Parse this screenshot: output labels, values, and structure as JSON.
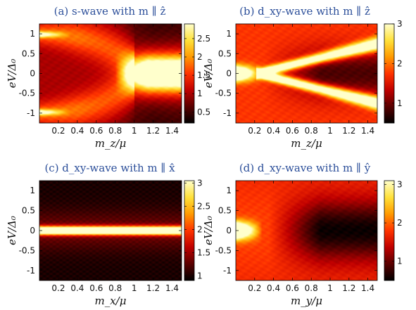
{
  "colormap": [
    "#000000",
    "#5a0000",
    "#c00000",
    "#ff3300",
    "#ff9a00",
    "#ffe13a",
    "#ffffcc"
  ],
  "chart_data": [
    {
      "id": "a",
      "type": "heatmap",
      "title": "(a) s-wave with m ∥ ẑ",
      "xlabel": "m_z/μ",
      "ylabel": "eV/Δ₀",
      "xlim": [
        0,
        1.5
      ],
      "ylim": [
        -1.25,
        1.25
      ],
      "xticks": [
        "0.2",
        "0.4",
        "0.6",
        "0.8",
        "1",
        "1.2",
        "1.4"
      ],
      "yticks": [
        "1",
        "0.5",
        "0",
        "-0.5",
        "-1"
      ],
      "colorbar": {
        "min": 0.2,
        "max": 2.9,
        "ticks": [
          "2.5",
          "2",
          "1.5",
          "1",
          "0.5"
        ]
      }
    },
    {
      "id": "b",
      "type": "heatmap",
      "title": "(b) d_xy-wave with m ∥ ẑ",
      "xlabel": "m_z/μ",
      "ylabel": "eV/Δ₀",
      "xlim": [
        0,
        1.5
      ],
      "ylim": [
        -1.25,
        1.25
      ],
      "xticks": [
        "0.2",
        "0.4",
        "0.6",
        "0.8",
        "1",
        "1.2",
        "1.4"
      ],
      "yticks": [
        "1",
        "0.5",
        "0",
        "-0.5",
        "-1"
      ],
      "colorbar": {
        "min": 0.5,
        "max": 3.0,
        "ticks": [
          "3",
          "2",
          "1"
        ]
      }
    },
    {
      "id": "c",
      "type": "heatmap",
      "title": "(c) d_xy-wave with m ∥ x̂",
      "xlabel": "m_x/μ",
      "ylabel": "eV/Δ₀",
      "xlim": [
        0,
        1.5
      ],
      "ylim": [
        -1.25,
        1.25
      ],
      "xticks": [
        "0.2",
        "0.4",
        "0.6",
        "0.8",
        "1",
        "1.2",
        "1.4"
      ],
      "yticks": [
        "1",
        "0.5",
        "0",
        "-0.5",
        "-1"
      ],
      "colorbar": {
        "min": 0.9,
        "max": 3.05,
        "ticks": [
          "3",
          "2.5",
          "2",
          "1.5",
          "1"
        ]
      }
    },
    {
      "id": "d",
      "type": "heatmap",
      "title": "(d) d_xy-wave with m ∥ ŷ",
      "xlabel": "m_y/μ",
      "ylabel": "eV/Δ₀",
      "xlim": [
        0,
        1.5
      ],
      "ylim": [
        -1.25,
        1.25
      ],
      "xticks": [
        "0.2",
        "0.4",
        "0.6",
        "0.8",
        "1",
        "1.2",
        "1.4"
      ],
      "yticks": [
        "1",
        "0.5",
        "0",
        "-0.5",
        "-1"
      ],
      "colorbar": {
        "min": 0.5,
        "max": 3.1,
        "ticks": [
          "3",
          "2",
          "1"
        ]
      }
    }
  ]
}
